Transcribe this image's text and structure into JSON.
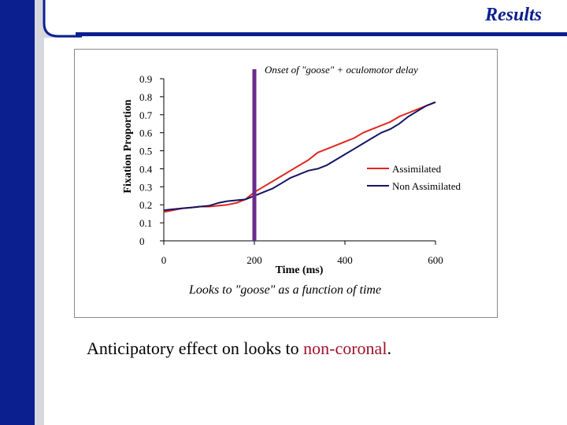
{
  "slide": {
    "title": "Results"
  },
  "caption": {
    "prefix": "Anticipatory effect on looks to ",
    "highlight": "non-coronal",
    "suffix": "."
  },
  "colors": {
    "accent": "#0b1f8f",
    "assimilated": "#e0261e",
    "non_assimilated": "#141464",
    "marker": "#6a2a8c",
    "highlight": "#a0102a"
  },
  "chart_data": {
    "type": "line",
    "title": "Looks to \"goose\" as a function of time",
    "xlabel": "Time (ms)",
    "ylabel": "Fixation Proportion",
    "xlim": [
      0,
      600
    ],
    "ylim": [
      0,
      0.9
    ],
    "xticks": [
      0,
      200,
      400,
      600
    ],
    "yticks": [
      0,
      0.1,
      0.2,
      0.3,
      0.4,
      0.5,
      0.6,
      0.7,
      0.8,
      0.9
    ],
    "ytick_labels": [
      "0",
      "0.1",
      "0.2",
      "0.3",
      "0.4",
      "0.5",
      "0.6",
      "0.7",
      "0.8",
      "0.9"
    ],
    "xtick_labels": [
      "0",
      "200",
      "400",
      "600"
    ],
    "annotation": {
      "text": "Onset of \"goose\" + oculomotor delay",
      "x": 200
    },
    "legend_position": "right-middle",
    "series": [
      {
        "name": "Assimilated",
        "x": [
          0,
          20,
          40,
          60,
          80,
          100,
          120,
          140,
          160,
          180,
          200,
          220,
          240,
          260,
          280,
          300,
          320,
          340,
          360,
          380,
          400,
          420,
          440,
          460,
          480,
          500,
          520,
          540,
          560,
          580,
          600
        ],
        "values": [
          0.16,
          0.17,
          0.18,
          0.185,
          0.19,
          0.19,
          0.195,
          0.2,
          0.21,
          0.23,
          0.27,
          0.3,
          0.33,
          0.36,
          0.39,
          0.42,
          0.45,
          0.49,
          0.51,
          0.53,
          0.55,
          0.57,
          0.6,
          0.62,
          0.64,
          0.66,
          0.69,
          0.71,
          0.73,
          0.75,
          0.77
        ]
      },
      {
        "name": "Non Assimilated",
        "x": [
          0,
          20,
          40,
          60,
          80,
          100,
          120,
          140,
          160,
          180,
          200,
          220,
          240,
          260,
          280,
          300,
          320,
          340,
          360,
          380,
          400,
          420,
          440,
          460,
          480,
          500,
          520,
          540,
          560,
          580,
          600
        ],
        "values": [
          0.17,
          0.175,
          0.18,
          0.185,
          0.19,
          0.195,
          0.21,
          0.22,
          0.225,
          0.23,
          0.25,
          0.27,
          0.29,
          0.32,
          0.35,
          0.37,
          0.39,
          0.4,
          0.42,
          0.45,
          0.48,
          0.51,
          0.54,
          0.57,
          0.6,
          0.62,
          0.65,
          0.69,
          0.72,
          0.75,
          0.77
        ]
      }
    ]
  }
}
